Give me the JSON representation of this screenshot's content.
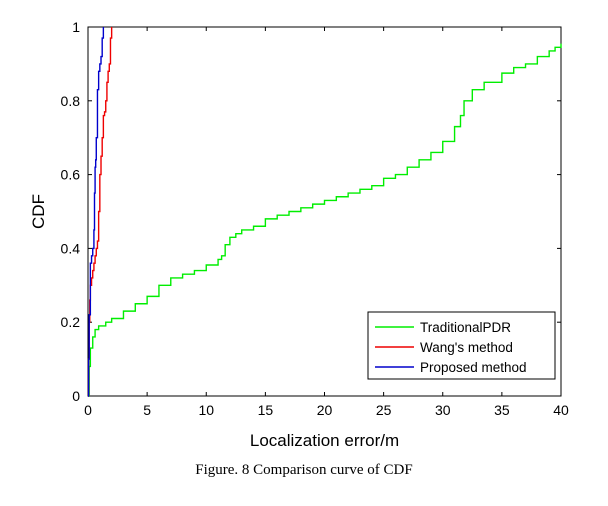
{
  "chart_data": {
    "type": "line",
    "xlabel": "Localization error/m",
    "ylabel": "CDF",
    "xlim": [
      0,
      40
    ],
    "ylim": [
      0,
      1
    ],
    "xticks": [
      "0",
      "5",
      "10",
      "15",
      "20",
      "25",
      "30",
      "35",
      "40"
    ],
    "yticks": [
      "0",
      "0.2",
      "0.4",
      "0.6",
      "0.8",
      "1"
    ],
    "grid": false,
    "legend_position": "bottom-right",
    "series": [
      {
        "name": "TraditionalPDR",
        "color": "#00ee00",
        "x": [
          0,
          0.1,
          0.2,
          0.4,
          0.6,
          0.9,
          1.5,
          2.0,
          3.0,
          4.0,
          5.0,
          6.0,
          7.0,
          8.0,
          9.0,
          10.0,
          11.0,
          11.3,
          11.6,
          12.0,
          12.5,
          13.0,
          14.0,
          15.0,
          16.0,
          17.0,
          18.0,
          19.0,
          20.0,
          21.0,
          22.0,
          23.0,
          24.0,
          25.0,
          26.0,
          27.0,
          28.0,
          29.0,
          30.0,
          31.0,
          31.5,
          31.8,
          32.5,
          33.5,
          35.0,
          36.0,
          37.0,
          38.0,
          39.0,
          39.5,
          40.0
        ],
        "y": [
          0,
          0.08,
          0.13,
          0.16,
          0.18,
          0.19,
          0.2,
          0.21,
          0.23,
          0.25,
          0.27,
          0.3,
          0.32,
          0.33,
          0.34,
          0.355,
          0.37,
          0.38,
          0.41,
          0.43,
          0.44,
          0.45,
          0.46,
          0.48,
          0.49,
          0.5,
          0.51,
          0.52,
          0.53,
          0.54,
          0.55,
          0.56,
          0.57,
          0.59,
          0.6,
          0.62,
          0.64,
          0.66,
          0.69,
          0.73,
          0.76,
          0.8,
          0.83,
          0.85,
          0.875,
          0.89,
          0.9,
          0.92,
          0.935,
          0.945,
          0.955
        ]
      },
      {
        "name": "Wang's method",
        "color": "#ee0000",
        "x": [
          0,
          0.05,
          0.1,
          0.15,
          0.2,
          0.3,
          0.4,
          0.5,
          0.6,
          0.7,
          0.8,
          0.9,
          1.0,
          1.1,
          1.2,
          1.3,
          1.4,
          1.5,
          1.6,
          1.7,
          1.8,
          1.9,
          2.0
        ],
        "y": [
          0,
          0.1,
          0.2,
          0.26,
          0.3,
          0.32,
          0.34,
          0.36,
          0.38,
          0.4,
          0.42,
          0.5,
          0.6,
          0.65,
          0.7,
          0.76,
          0.77,
          0.8,
          0.85,
          0.88,
          0.9,
          0.97,
          1.0
        ]
      },
      {
        "name": "Proposed method",
        "color": "#0000cc",
        "x": [
          0,
          0.05,
          0.1,
          0.2,
          0.3,
          0.4,
          0.5,
          0.55,
          0.6,
          0.65,
          0.7,
          0.8,
          0.9,
          1.0,
          1.1,
          1.2,
          1.3
        ],
        "y": [
          0,
          0.1,
          0.22,
          0.36,
          0.38,
          0.4,
          0.45,
          0.55,
          0.62,
          0.64,
          0.7,
          0.83,
          0.88,
          0.9,
          0.92,
          0.97,
          1.0
        ]
      }
    ]
  },
  "caption": "Figure. 8    Comparison curve of CDF"
}
